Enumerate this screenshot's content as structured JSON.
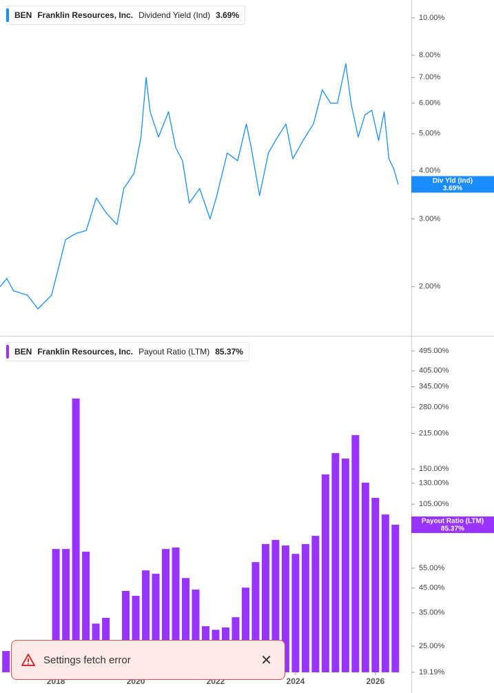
{
  "chart_data": [
    {
      "type": "line",
      "log_y": true,
      "color": "#1a8cff",
      "header": {
        "ticker": "BEN",
        "company": "Franklin Resources, Inc.",
        "metric": "Dividend Yield (Ind)",
        "value": "3.69%"
      },
      "tag": {
        "label": "Div Yld (Ind)",
        "value": "3.69%"
      },
      "xlim": [
        2016.6,
        2026.9
      ],
      "ylim": [
        1.49,
        11.13
      ],
      "yticks": [
        {
          "value": 2,
          "label": "2.00%"
        },
        {
          "value": 3,
          "label": "3.00%"
        },
        {
          "value": 4,
          "label": "4.00%"
        },
        {
          "value": 5,
          "label": "5.00%"
        },
        {
          "value": 6,
          "label": "6.00%"
        },
        {
          "value": 7,
          "label": "7.00%"
        },
        {
          "value": 8,
          "label": "8.00%"
        },
        {
          "value": 10,
          "label": "10.00%"
        }
      ],
      "x": [
        2016.6,
        2016.77,
        2016.94,
        2017.29,
        2017.55,
        2017.89,
        2018.07,
        2018.24,
        2018.5,
        2018.76,
        2019.01,
        2019.27,
        2019.53,
        2019.7,
        2019.96,
        2020.13,
        2020.26,
        2020.36,
        2020.57,
        2020.82,
        2021.0,
        2021.17,
        2021.34,
        2021.6,
        2021.86,
        2022.03,
        2022.29,
        2022.55,
        2022.77,
        2022.89,
        2023.1,
        2023.32,
        2023.5,
        2023.76,
        2023.93,
        2024.19,
        2024.45,
        2024.67,
        2024.88,
        2025.05,
        2025.26,
        2025.39,
        2025.57,
        2025.74,
        2025.91,
        2026.08,
        2026.22,
        2026.34,
        2026.46,
        2026.57
      ],
      "values": [
        2.0,
        2.1,
        1.95,
        1.9,
        1.75,
        1.9,
        2.25,
        2.65,
        2.75,
        2.8,
        3.4,
        3.1,
        2.9,
        3.6,
        3.95,
        4.9,
        7.0,
        5.7,
        4.9,
        5.7,
        4.6,
        4.25,
        3.3,
        3.6,
        3.0,
        3.45,
        4.45,
        4.25,
        5.3,
        4.6,
        3.45,
        4.45,
        4.8,
        5.3,
        4.3,
        4.8,
        5.3,
        6.5,
        6.0,
        6.0,
        7.6,
        6.0,
        4.9,
        5.6,
        5.75,
        4.8,
        5.7,
        4.3,
        4.05,
        3.69
      ]
    },
    {
      "type": "bar",
      "log_y": true,
      "color": "#9933ff",
      "header": {
        "ticker": "BEN",
        "company": "Franklin Resources, Inc.",
        "metric": "Payout Ratio (LTM)",
        "value": "85.37%"
      },
      "tag": {
        "label": "Payout Ratio (LTM)",
        "value": "85.37%"
      },
      "xlim": [
        2016.6,
        2026.9
      ],
      "ylim": [
        19.19,
        565
      ],
      "xticks": [
        2018,
        2020,
        2022,
        2024,
        2026
      ],
      "yticks": [
        {
          "value": 19.19,
          "label": "19.19%"
        },
        {
          "value": 25,
          "label": "25.00%"
        },
        {
          "value": 35,
          "label": "35.00%"
        },
        {
          "value": 45,
          "label": "45.00%"
        },
        {
          "value": 55,
          "label": "55.00%"
        },
        {
          "value": 105,
          "label": "105.00%"
        },
        {
          "value": 130,
          "label": "130.00%"
        },
        {
          "value": 150,
          "label": "150.00%"
        },
        {
          "value": 215,
          "label": "215.00%"
        },
        {
          "value": 280,
          "label": "280.00%"
        },
        {
          "value": 345,
          "label": "345.00%"
        },
        {
          "value": 405,
          "label": "405.00%"
        },
        {
          "value": 495,
          "label": "495.00%"
        }
      ],
      "x": [
        2016.75,
        2018.0,
        2018.25,
        2018.5,
        2018.75,
        2019.0,
        2019.25,
        2019.75,
        2020.0,
        2020.25,
        2020.5,
        2020.75,
        2021.0,
        2021.25,
        2021.5,
        2021.75,
        2022.0,
        2022.25,
        2022.5,
        2022.75,
        2023.0,
        2023.25,
        2023.5,
        2023.75,
        2024.0,
        2024.25,
        2024.5,
        2024.75,
        2025.0,
        2025.25,
        2025.5,
        2025.75,
        2026.0,
        2026.25,
        2026.5
      ],
      "values": [
        23.8,
        66.8,
        66.8,
        305.9,
        65.0,
        31.4,
        33.3,
        43.7,
        41.6,
        53.8,
        52.0,
        66.8,
        67.8,
        49.8,
        44.3,
        30.6,
        29.5,
        30.2,
        33.5,
        45.2,
        58.5,
        70.2,
        73.2,
        69.2,
        63.6,
        70.2,
        76.3,
        142,
        176.2,
        166.7,
        211.3,
        130.6,
        112,
        94.7,
        85.37
      ]
    }
  ],
  "toast": {
    "message": "Settings fetch error"
  }
}
